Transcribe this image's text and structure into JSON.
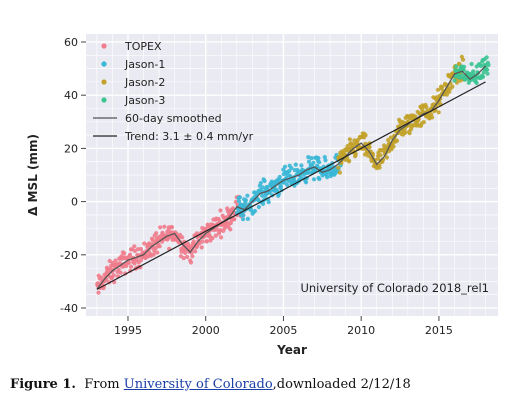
{
  "chart_data": {
    "type": "scatter",
    "xlabel": "Year",
    "ylabel": "Δ MSL (mm)",
    "xlim": [
      1992.3,
      2018.8
    ],
    "ylim": [
      -43,
      63
    ],
    "x_ticks": [
      1995,
      2000,
      2005,
      2010,
      2015
    ],
    "y_ticks": [
      -40,
      -20,
      0,
      20,
      40,
      60
    ],
    "grid": true,
    "legend_position": "top-left",
    "annotation": "University of Colorado 2018_rel1",
    "series": [
      {
        "name": "TOPEX",
        "color": "#f07c8c",
        "x_range": [
          1993.0,
          2002.5
        ]
      },
      {
        "name": "Jason-1",
        "color": "#38b7d6",
        "x_range": [
          2002.0,
          2008.7
        ]
      },
      {
        "name": "Jason-2",
        "color": "#c2a22a",
        "x_range": [
          2008.5,
          2016.6
        ]
      },
      {
        "name": "Jason-3",
        "color": "#3cc492",
        "x_range": [
          2016.0,
          2018.2
        ]
      }
    ],
    "smoothed": {
      "name": "60-day smoothed",
      "color": "#555555",
      "x": [
        1993.0,
        1993.5,
        1994.0,
        1994.5,
        1995.0,
        1995.5,
        1996.0,
        1996.5,
        1997.0,
        1997.5,
        1998.0,
        1998.5,
        1999.0,
        1999.5,
        2000.0,
        2000.5,
        2001.0,
        2001.5,
        2002.0,
        2002.5,
        2003.0,
        2003.5,
        2004.0,
        2004.5,
        2005.0,
        2005.5,
        2006.0,
        2006.5,
        2007.0,
        2007.5,
        2008.0,
        2008.5,
        2009.0,
        2009.5,
        2010.0,
        2010.5,
        2011.0,
        2011.5,
        2012.0,
        2012.5,
        2013.0,
        2013.5,
        2014.0,
        2014.5,
        2015.0,
        2015.5,
        2016.0,
        2016.5,
        2017.0,
        2017.5,
        2018.0
      ],
      "y": [
        -33,
        -29,
        -26,
        -24,
        -22,
        -21,
        -20,
        -17,
        -15,
        -13,
        -12,
        -16,
        -19,
        -15,
        -12,
        -10,
        -8,
        -6,
        -2,
        -3,
        0,
        3,
        4,
        6,
        8,
        9,
        10,
        12,
        13,
        11,
        12,
        14,
        17,
        20,
        22,
        19,
        14,
        17,
        23,
        27,
        29,
        31,
        33,
        34,
        38,
        43,
        48,
        49,
        46,
        48,
        51
      ]
    },
    "trend": {
      "name": "Trend: 3.1 ± 0.4 mm/yr",
      "color": "#222222",
      "x": [
        1993.0,
        2018.0
      ],
      "y": [
        -33,
        45
      ]
    }
  },
  "caption": {
    "figure_label": "Figure 1.",
    "text_before_link": "From ",
    "link_text": "University of Colorado",
    "text_after_link": ",downloaded 2/12/18"
  }
}
